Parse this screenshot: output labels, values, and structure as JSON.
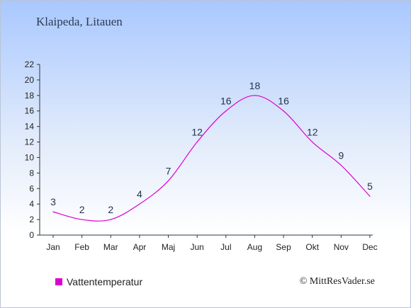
{
  "header": {
    "location": "Klaipeda, Litauen"
  },
  "legend": {
    "label": "Vattentemperatur",
    "color": "#dd00cc"
  },
  "credit": {
    "text": "© MittResVader.se"
  },
  "chart_data": {
    "type": "line",
    "title": "",
    "xlabel": "",
    "ylabel": "",
    "categories": [
      "Jan",
      "Feb",
      "Mar",
      "Apr",
      "Maj",
      "Jun",
      "Jul",
      "Aug",
      "Sep",
      "Okt",
      "Nov",
      "Dec"
    ],
    "series": [
      {
        "name": "Vattentemperatur",
        "values": [
          3,
          2,
          2,
          4,
          7,
          12,
          16,
          18,
          16,
          12,
          9,
          5
        ],
        "color": "#dd00cc"
      }
    ],
    "ylim": [
      0,
      22
    ],
    "yticks": [
      0,
      2,
      4,
      6,
      8,
      10,
      12,
      14,
      16,
      18,
      20,
      22
    ],
    "grid": false,
    "data_labels": true,
    "legend_position": "bottom-left"
  }
}
